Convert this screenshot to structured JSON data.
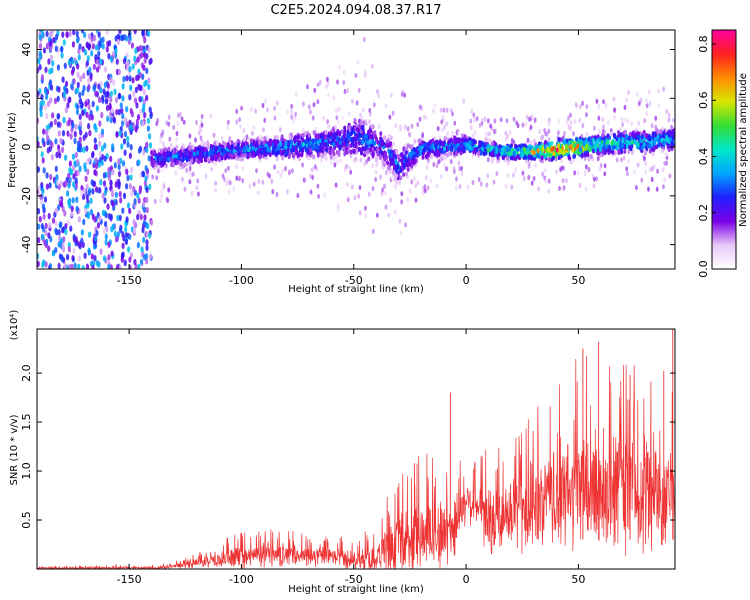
{
  "figure": {
    "title": "C2E5.2024.094.08.37.R17"
  },
  "chart_data": [
    {
      "type": "heatmap",
      "title": "C2E5.2024.094.08.37.R17",
      "xlabel": "Height of straight line (km)",
      "ylabel": "Frequency (Hz)",
      "xlim": [
        -191,
        93
      ],
      "ylim": [
        -50,
        48
      ],
      "xticks": [
        -150,
        -100,
        -50,
        0,
        50
      ],
      "yticks": [
        -40,
        -20,
        0,
        20,
        40
      ],
      "grid": false,
      "colorbar": {
        "label": "Normalized spectral amplitude",
        "range": [
          0,
          0.85
        ],
        "ticks": [
          0.0,
          0.2,
          0.4,
          0.6,
          0.8
        ],
        "colors": [
          "#ffffff",
          "#e9c8f8",
          "#7b00e6",
          "#1f1fff",
          "#00a6ff",
          "#00e6c8",
          "#33dd33",
          "#d8e600",
          "#ff8c00",
          "#ff2020",
          "#ff00a0"
        ]
      },
      "ridge": {
        "x": [
          -140,
          -120,
          -100,
          -80,
          -60,
          -50,
          -45,
          -40,
          -35,
          -30,
          -25,
          -20,
          -10,
          0,
          10,
          20,
          30,
          40,
          50,
          60,
          70,
          80,
          90
        ],
        "center_hz": [
          -5,
          -3,
          -1,
          0,
          2,
          4,
          3,
          2,
          -2,
          -8,
          -4,
          -1,
          0,
          1,
          -1,
          -2,
          -2,
          -1,
          0,
          1,
          2,
          2,
          3
        ],
        "half_width_hz": [
          6,
          6,
          6,
          7,
          9,
          13,
          14,
          12,
          10,
          11,
          8,
          6,
          6,
          6,
          5,
          5,
          5,
          6,
          6,
          6,
          7,
          7,
          7
        ],
        "peak_amplitude": [
          0.3,
          0.32,
          0.34,
          0.38,
          0.32,
          0.3,
          0.32,
          0.28,
          0.3,
          0.32,
          0.34,
          0.36,
          0.36,
          0.38,
          0.45,
          0.5,
          0.62,
          0.8,
          0.7,
          0.5,
          0.45,
          0.42,
          0.4
        ]
      },
      "noise_region_x": [
        -191,
        -140
      ]
    },
    {
      "type": "line",
      "xlabel": "Height of straight line (km)",
      "ylabel": "SNR (10 * v/v)",
      "scale_label": "(x10⁴)",
      "xlim": [
        -191,
        93
      ],
      "ylim": [
        0,
        2.45
      ],
      "xticks": [
        -150,
        -100,
        -50,
        0,
        50
      ],
      "yticks": [
        0.5,
        1.0,
        1.5,
        2.0
      ],
      "ytick_labels": [
        "0.5",
        "1.0",
        "1.5",
        "2.0"
      ],
      "grid": false,
      "color": "#ee3333",
      "envelope": {
        "x": [
          -191,
          -140,
          -130,
          -120,
          -110,
          -100,
          -90,
          -80,
          -70,
          -60,
          -50,
          -40,
          -35,
          -30,
          -25,
          -20,
          -10,
          -5,
          0,
          5,
          10,
          20,
          30,
          40,
          50,
          60,
          70,
          80,
          90,
          93
        ],
        "base": [
          0.01,
          0.01,
          0.03,
          0.06,
          0.09,
          0.12,
          0.14,
          0.14,
          0.13,
          0.12,
          0.1,
          0.12,
          0.18,
          0.25,
          0.3,
          0.32,
          0.35,
          0.45,
          0.7,
          0.65,
          0.45,
          0.55,
          0.62,
          0.72,
          0.8,
          0.82,
          0.85,
          0.8,
          0.82,
          0.82
        ],
        "amp": [
          0.01,
          0.02,
          0.03,
          0.06,
          0.1,
          0.14,
          0.14,
          0.14,
          0.12,
          0.12,
          0.12,
          0.18,
          0.3,
          0.38,
          0.45,
          0.45,
          0.45,
          0.4,
          0.25,
          0.25,
          0.45,
          0.45,
          0.55,
          0.62,
          0.75,
          0.8,
          0.8,
          0.75,
          0.75,
          0.75
        ]
      },
      "spikes": [
        {
          "x": -7,
          "y": 1.8
        },
        {
          "x": -23,
          "y": 1.08
        },
        {
          "x": 52,
          "y": 2.25
        },
        {
          "x": 59,
          "y": 2.32
        },
        {
          "x": 73,
          "y": 1.98
        },
        {
          "x": 88,
          "y": 2.02
        },
        {
          "x": 92,
          "y": 2.45
        }
      ]
    }
  ]
}
